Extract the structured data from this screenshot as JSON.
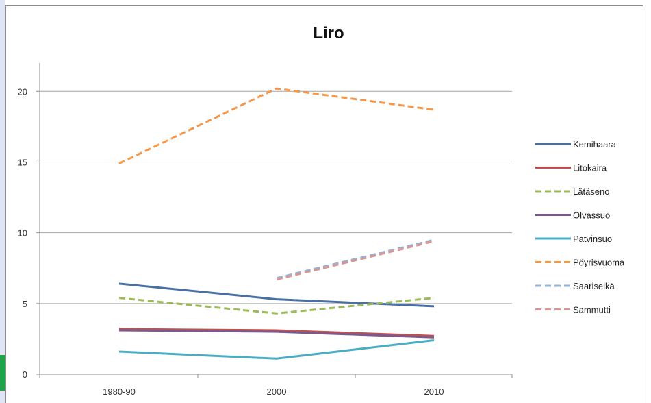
{
  "chart_data": {
    "type": "line",
    "title": "Liro",
    "xlabel": "",
    "ylabel": "",
    "categories": [
      "1980-90",
      "2000",
      "2010"
    ],
    "ylim": [
      0,
      22
    ],
    "yticks": [
      0,
      5,
      10,
      15,
      20
    ],
    "grid": true,
    "legend_position": "right",
    "series": [
      {
        "name": "Kemihaara",
        "values": [
          6.4,
          5.3,
          4.8
        ],
        "color": "#4a6fa5",
        "dash": "solid"
      },
      {
        "name": "Litokaira",
        "values": [
          3.2,
          3.1,
          2.7
        ],
        "color": "#c0504d",
        "dash": "solid"
      },
      {
        "name": "Lätäseno",
        "values": [
          5.4,
          4.3,
          5.4
        ],
        "color": "#9bbb59",
        "dash": "dashed"
      },
      {
        "name": "Olvassuo",
        "values": [
          3.1,
          3.0,
          2.6
        ],
        "color": "#7a5a8c",
        "dash": "solid"
      },
      {
        "name": "Patvinsuo",
        "values": [
          1.6,
          1.1,
          2.4
        ],
        "color": "#4bacc6",
        "dash": "solid"
      },
      {
        "name": "Pöyrisvuoma",
        "values": [
          14.9,
          20.2,
          18.7
        ],
        "color": "#f79646",
        "dash": "dashed"
      },
      {
        "name": "Saariselkä",
        "values": [
          null,
          6.8,
          9.5
        ],
        "color": "#95b3d7",
        "dash": "dashed"
      },
      {
        "name": "Sammutti",
        "values": [
          null,
          6.7,
          9.4
        ],
        "color": "#d99694",
        "dash": "dashed"
      }
    ]
  }
}
